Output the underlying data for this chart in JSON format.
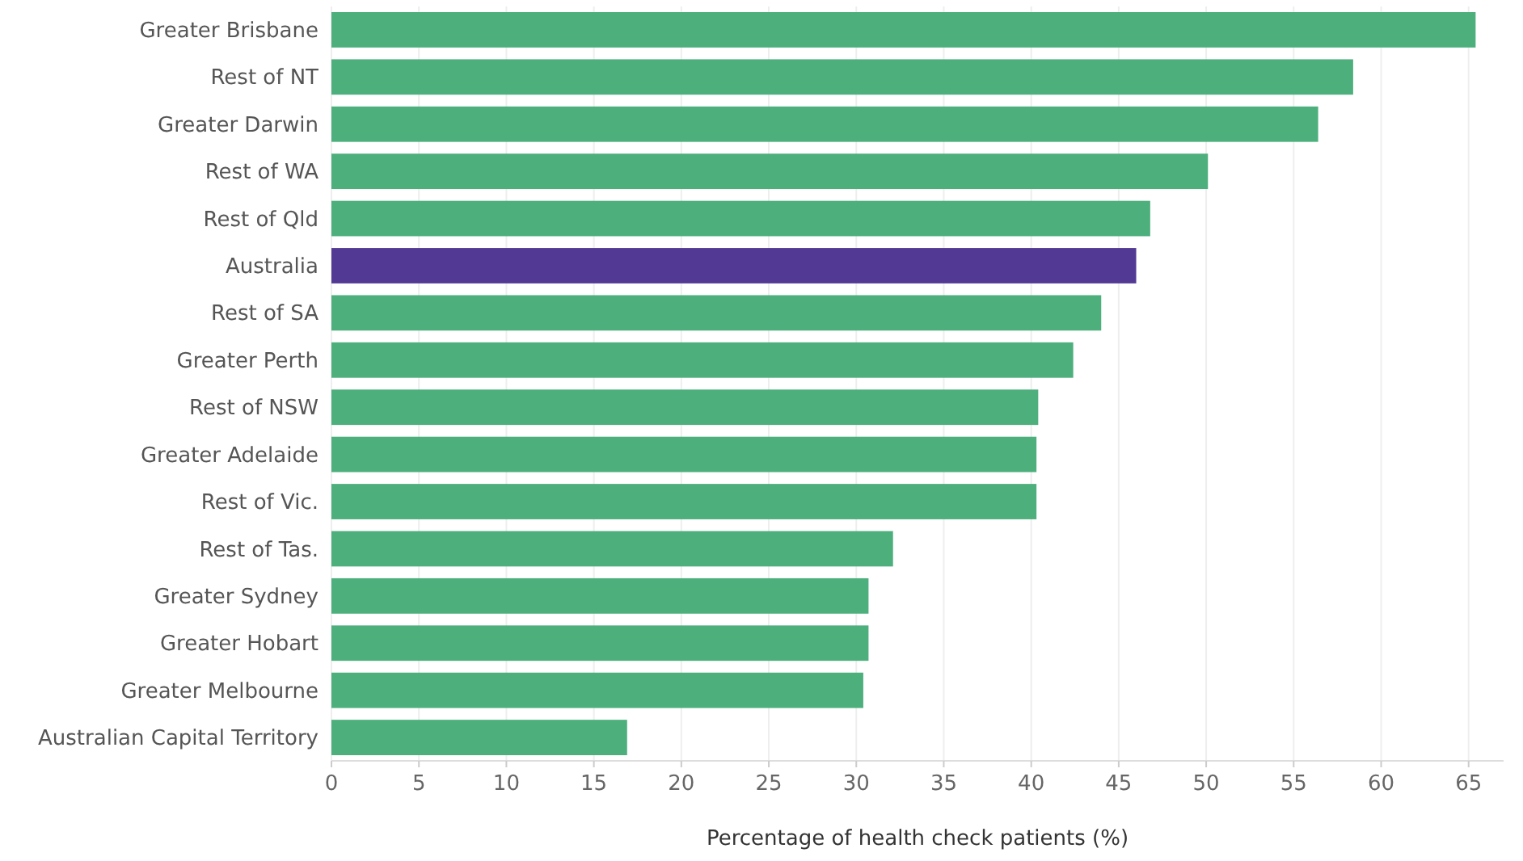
{
  "chart_data": {
    "type": "bar",
    "orientation": "horizontal",
    "xlabel": "Percentage of health check patients (%)",
    "categories": [
      "Greater Brisbane",
      "Rest of NT",
      "Greater Darwin",
      "Rest of WA",
      "Rest of Qld",
      "Australia",
      "Rest of SA",
      "Greater Perth",
      "Rest of NSW",
      "Greater Adelaide",
      "Rest of Vic.",
      "Rest of Tas.",
      "Greater Sydney",
      "Greater Hobart",
      "Greater Melbourne",
      "Australian Capital Territory"
    ],
    "values": [
      65.4,
      58.4,
      56.4,
      50.1,
      46.8,
      46.0,
      44.0,
      42.4,
      40.4,
      40.3,
      40.3,
      32.1,
      30.7,
      30.7,
      30.4,
      16.9
    ],
    "colors": [
      "#4caf7c",
      "#4caf7c",
      "#4caf7c",
      "#4caf7c",
      "#4caf7c",
      "#523a94",
      "#4caf7c",
      "#4caf7c",
      "#4caf7c",
      "#4caf7c",
      "#4caf7c",
      "#4caf7c",
      "#4caf7c",
      "#4caf7c",
      "#4caf7c",
      "#4caf7c"
    ],
    "xlim": [
      0,
      67
    ],
    "xticks": [
      0,
      5,
      10,
      15,
      20,
      25,
      30,
      35,
      40,
      45,
      50,
      55,
      60,
      65
    ],
    "grid": "x"
  }
}
